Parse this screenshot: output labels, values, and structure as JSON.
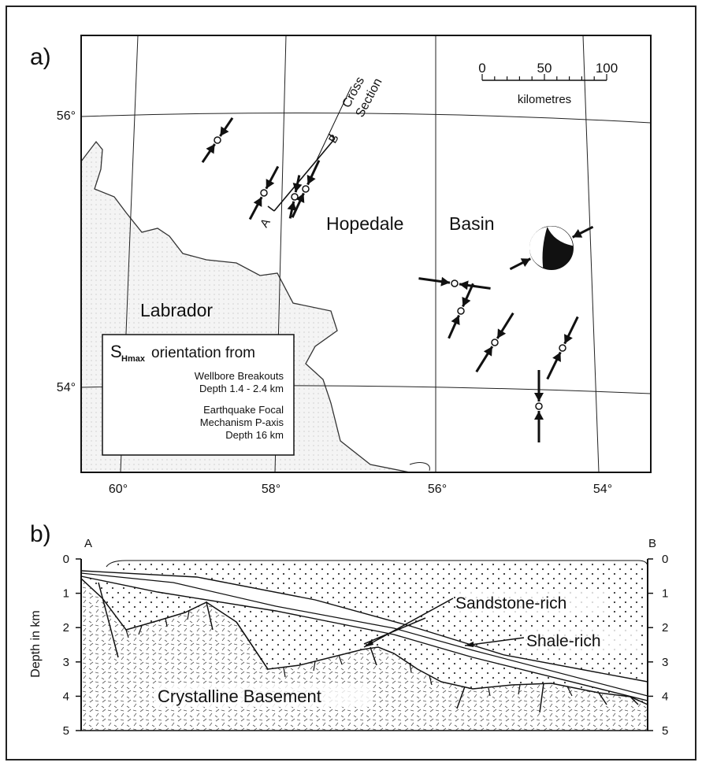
{
  "panel_a": {
    "label": "a)",
    "lat_labels": [
      "56°",
      "54°"
    ],
    "lon_labels": [
      "60°",
      "58°",
      "56°",
      "54°"
    ],
    "cross_section": [
      "Cross",
      "Section"
    ],
    "end_a": "A",
    "end_b": "B",
    "scale": {
      "ticks": [
        0,
        50,
        100
      ],
      "unit": "kilometres"
    },
    "place_labels": [
      "Hopedale",
      "Basin",
      "Labrador"
    ],
    "legend": {
      "title_s": "S",
      "title_sub": "Hmax",
      "title_rest": "orientation from",
      "items": [
        {
          "lines": [
            "Wellbore Breakouts",
            "Depth 1.4 - 2.4 km"
          ]
        },
        {
          "lines": [
            "Earthquake Focal",
            "Mechanism P-axis",
            "Depth 16 km"
          ]
        }
      ]
    }
  },
  "panel_b": {
    "label": "b)",
    "end_a": "A",
    "end_b": "B",
    "y_title": "Depth in km",
    "depth_ticks": [
      0,
      1,
      2,
      3,
      4,
      5
    ],
    "units": [
      "Sandstone-rich",
      "Shale-rich",
      "Crystalline Basement"
    ]
  }
}
